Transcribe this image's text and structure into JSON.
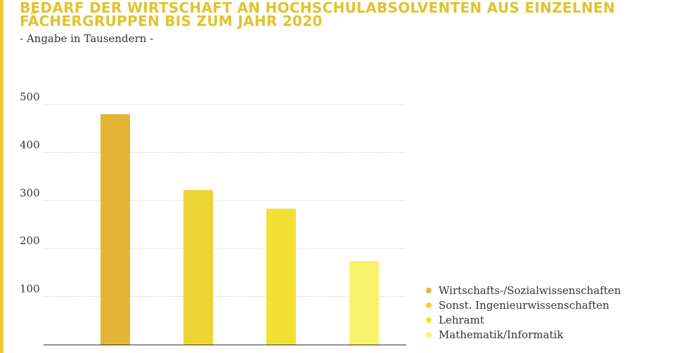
{
  "header": {
    "title": "BEDARF DER WIRTSCHAFT AN HOCHSCHULABSOLVENTEN AUS EINZELNEN FÄCHERGRUPPEN BIS ZUM JAHR 2020",
    "subtitle": "- Angabe in Tausendern -"
  },
  "colors": {
    "accent": "#efc934",
    "title": "#e2c22e",
    "grid": "#b5b5b5",
    "axis": "#333333"
  },
  "chart_data": {
    "type": "bar",
    "categories": [
      "Wirtschafts-/Sozialwissenschaften",
      "Sonst. Ingenieurwissenschaften",
      "Lehramt",
      "Mathematik/Informatik"
    ],
    "values": [
      480,
      322,
      283,
      174
    ],
    "colors": [
      "#e2b634",
      "#edd435",
      "#f2e134",
      "#f9f26b"
    ],
    "yticks": [
      100,
      200,
      300,
      400,
      500
    ],
    "ylim": [
      0,
      500
    ],
    "grid": true,
    "legend_position": "bottom-right",
    "title": "BEDARF DER WIRTSCHAFT AN HOCHSCHULABSOLVENTEN AUS EINZELNEN FÄCHERGRUPPEN BIS ZUM JAHR 2020",
    "subtitle": "- Angabe in Tausendern -",
    "xlabel": "",
    "ylabel": ""
  },
  "legend": {
    "items": [
      "Wirtschafts-/Sozialwissenschaften",
      "Sonst. Ingenieurwissenschaften",
      "Lehramt",
      "Mathematik/Informatik"
    ]
  }
}
